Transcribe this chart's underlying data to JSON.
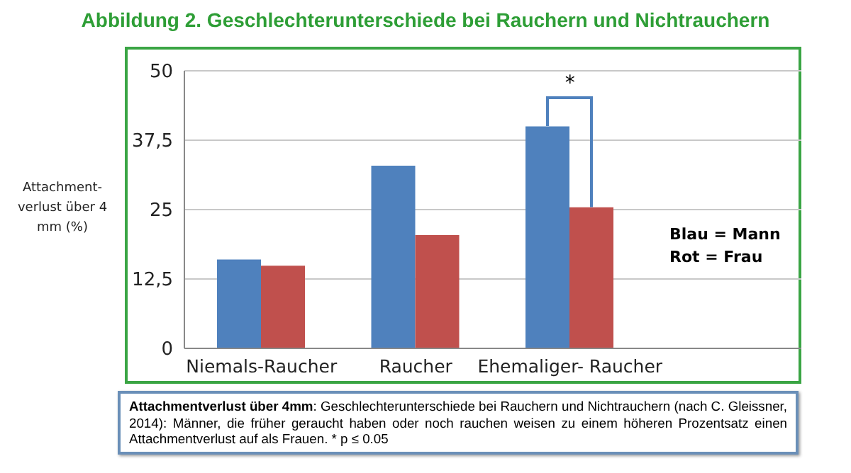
{
  "chart_data": {
    "type": "bar",
    "title": "Abbildung 2. Geschlechterunterschiede bei Rauchern und Nichtrauchern",
    "ylabel": "Attachment-verlust über 4 mm (%)",
    "categories": [
      "Niemals-Raucher",
      "Raucher",
      "Ehemaliger- Raucher"
    ],
    "series": [
      {
        "color": "#4f81bd",
        "values": [
          16.0,
          32.9,
          40.0
        ]
      },
      {
        "color": "#c0504d",
        "values": [
          14.9,
          20.4,
          25.4
        ]
      }
    ],
    "ylim": [
      0,
      50
    ],
    "yticks": [
      0,
      {
        "value": 12.5,
        "label": "12,5"
      },
      25,
      {
        "value": 37.5,
        "label": "37,5"
      },
      50
    ],
    "grid": "y",
    "legend": false,
    "annotations": [
      "*",
      "Blau = Mann",
      "Rot = Frau",
      "Attachmentverlust über 4mm",
      ": Geschlechterunterschiede bei Rauchern und Nichtrauchern (nach C. Gleissner, 2014): Männer, die früher geraucht haben oder noch rauchen weisen zu einem höheren Prozentsatz einen  Attachmentverlust auf als Frauen. * p ≤ 0.05"
    ]
  }
}
